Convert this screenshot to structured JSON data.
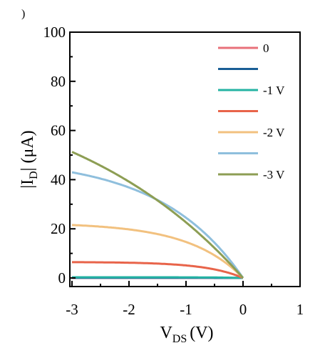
{
  "corner_mark": ")",
  "chart_data": {
    "type": "line",
    "xlabel_main": "V",
    "xlabel_sub": "DS",
    "xlabel_unit": "(V)",
    "ylabel_pre": "|I",
    "ylabel_sub": "D",
    "ylabel_post": "| (μA)",
    "xlim": [
      -3,
      1
    ],
    "ylim": [
      0,
      100
    ],
    "xticks": [
      -3,
      -2,
      -1,
      0,
      1
    ],
    "yticks": [
      0,
      20,
      40,
      60,
      80,
      100
    ],
    "grid": false,
    "legend_position": "top-right",
    "series": [
      {
        "name": "0",
        "color": "#e8717a",
        "sat": 0.02,
        "k": 0.25
      },
      {
        "name": "",
        "color": "#1a5e96",
        "sat": 0.05,
        "k": 0.25
      },
      {
        "name": "-1 V",
        "color": "#25b3a3",
        "sat": 0.3,
        "k": 0.45
      },
      {
        "name": "",
        "color": "#e8644a",
        "sat": 6.5,
        "k": 0.65
      },
      {
        "name": "-2 V",
        "color": "#f2c17f",
        "sat": 22.5,
        "k": 0.95
      },
      {
        "name": "",
        "color": "#8fbfdd",
        "sat": 49.2,
        "k": 1.45
      },
      {
        "name": "-3 V",
        "color": "#8d9e54",
        "sat": 84.3,
        "k": 3.2
      }
    ]
  }
}
